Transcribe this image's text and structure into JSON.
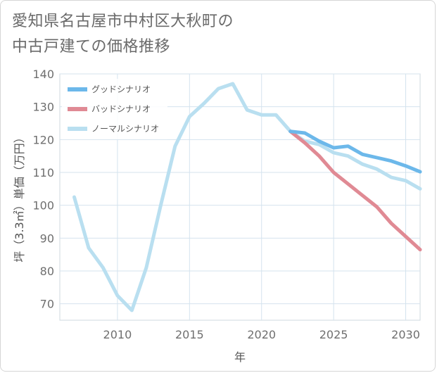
{
  "title_line1": "愛知県名古屋市中村区大秋町の",
  "title_line2": "中古戸建ての価格推移",
  "chart_data": {
    "type": "line",
    "title": "愛知県名古屋市中村区大秋町の中古戸建ての価格推移",
    "xlabel": "年",
    "ylabel": "坪（3.3㎡）単価（万円）",
    "xlim": [
      2006,
      2031
    ],
    "ylim": [
      65,
      140
    ],
    "x_ticks": [
      2010,
      2015,
      2020,
      2025,
      2030
    ],
    "y_ticks": [
      70,
      80,
      90,
      100,
      110,
      120,
      130,
      140
    ],
    "grid": true,
    "legend_position": "top-left",
    "series": [
      {
        "name": "グッドシナリオ",
        "color": "#6cb8ea",
        "x": [
          2022,
          2023,
          2024,
          2025,
          2026,
          2027,
          2028,
          2029,
          2030,
          2031
        ],
        "y": [
          122.5,
          122.0,
          119.5,
          117.5,
          118.0,
          115.5,
          114.5,
          113.5,
          112.0,
          110.2
        ]
      },
      {
        "name": "バッドシナリオ",
        "color": "#e08a94",
        "x": [
          2022,
          2023,
          2024,
          2025,
          2026,
          2027,
          2028,
          2029,
          2030,
          2031
        ],
        "y": [
          122.5,
          119.0,
          115.0,
          110.0,
          106.5,
          103.0,
          99.5,
          94.5,
          90.5,
          86.5
        ]
      },
      {
        "name": "ノーマルシナリオ",
        "color": "#b9dff0",
        "x": [
          2007,
          2008,
          2009,
          2010,
          2011,
          2012,
          2013,
          2014,
          2015,
          2016,
          2017,
          2018,
          2019,
          2020,
          2021,
          2022,
          2023,
          2024,
          2025,
          2026,
          2027,
          2028,
          2029,
          2030,
          2031
        ],
        "y": [
          102.5,
          87.0,
          81.0,
          72.5,
          68.0,
          81.0,
          100.0,
          118.0,
          127.0,
          131.0,
          135.5,
          137.0,
          129.0,
          127.5,
          127.5,
          122.5,
          119.5,
          118.5,
          116.0,
          115.0,
          112.5,
          111.0,
          108.5,
          107.5,
          105.0
        ]
      }
    ]
  }
}
